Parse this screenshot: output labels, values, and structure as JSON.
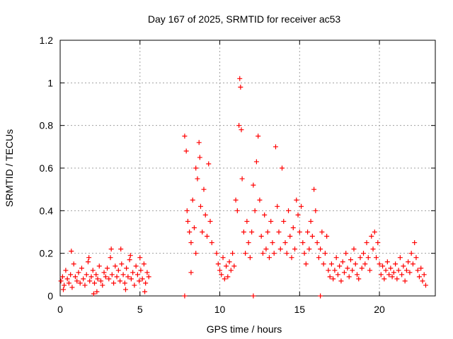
{
  "chart_data": {
    "type": "scatter",
    "title": "Day 167 of 2025, SRMTID for receiver ac53",
    "xlabel": "GPS time / hours",
    "ylabel": "SRMTID / TECUs",
    "xlim": [
      0,
      23.5
    ],
    "ylim": [
      0,
      1.2
    ],
    "xticks": [
      0,
      5,
      10,
      15,
      20
    ],
    "xtick_labels": [
      "0",
      "5",
      "10",
      "15",
      "20"
    ],
    "yticks": [
      0,
      0.2,
      0.4,
      0.6,
      0.8,
      1.0,
      1.2
    ],
    "ytick_labels": [
      "0",
      "0.2",
      "0.4",
      "0.6",
      "0.8",
      "1",
      "1.2"
    ],
    "grid": true,
    "marker": "+",
    "series": [
      {
        "name": "SRMTID",
        "color": "#ff0000",
        "points": [
          [
            0.05,
            0.07
          ],
          [
            0.15,
            0.09
          ],
          [
            0.25,
            0.05
          ],
          [
            0.35,
            0.12
          ],
          [
            0.45,
            0.08
          ],
          [
            0.55,
            0.06
          ],
          [
            0.65,
            0.1
          ],
          [
            0.75,
            0.04
          ],
          [
            0.85,
            0.15
          ],
          [
            0.95,
            0.09
          ],
          [
            1.05,
            0.07
          ],
          [
            1.15,
            0.11
          ],
          [
            1.25,
            0.06
          ],
          [
            1.35,
            0.13
          ],
          [
            1.45,
            0.08
          ],
          [
            1.55,
            0.05
          ],
          [
            1.65,
            0.1
          ],
          [
            1.75,
            0.16
          ],
          [
            1.85,
            0.07
          ],
          [
            1.95,
            0.09
          ],
          [
            2.05,
            0.12
          ],
          [
            2.15,
            0.06
          ],
          [
            2.25,
            0.1
          ],
          [
            2.35,
            0.08
          ],
          [
            2.45,
            0.14
          ],
          [
            2.55,
            0.07
          ],
          [
            2.65,
            0.05
          ],
          [
            2.75,
            0.11
          ],
          [
            2.85,
            0.09
          ],
          [
            2.95,
            0.13
          ],
          [
            3.05,
            0.08
          ],
          [
            3.15,
            0.18
          ],
          [
            3.25,
            0.1
          ],
          [
            3.35,
            0.06
          ],
          [
            3.45,
            0.14
          ],
          [
            3.55,
            0.09
          ],
          [
            3.65,
            0.12
          ],
          [
            3.75,
            0.07
          ],
          [
            3.85,
            0.15
          ],
          [
            3.95,
            0.1
          ],
          [
            4.05,
            0.06
          ],
          [
            4.15,
            0.13
          ],
          [
            4.25,
            0.09
          ],
          [
            4.35,
            0.17
          ],
          [
            4.45,
            0.08
          ],
          [
            4.55,
            0.11
          ],
          [
            4.65,
            0.05
          ],
          [
            4.75,
            0.14
          ],
          [
            4.85,
            0.1
          ],
          [
            4.95,
            0.07
          ],
          [
            5.05,
            0.12
          ],
          [
            5.15,
            0.08
          ],
          [
            5.25,
            0.15
          ],
          [
            5.35,
            0.06
          ],
          [
            5.45,
            0.11
          ],
          [
            5.55,
            0.09
          ],
          [
            0.7,
            0.21
          ],
          [
            1.8,
            0.18
          ],
          [
            3.2,
            0.22
          ],
          [
            3.8,
            0.22
          ],
          [
            4.4,
            0.19
          ],
          [
            5.0,
            0.18
          ],
          [
            0.2,
            0.03
          ],
          [
            2.3,
            0.02
          ],
          [
            4.1,
            0.03
          ],
          [
            7.8,
            0.75
          ],
          [
            7.9,
            0.68
          ],
          [
            7.95,
            0.4
          ],
          [
            8.0,
            0.35
          ],
          [
            8.1,
            0.3
          ],
          [
            8.2,
            0.25
          ],
          [
            8.3,
            0.45
          ],
          [
            8.4,
            0.32
          ],
          [
            8.5,
            0.6
          ],
          [
            8.6,
            0.55
          ],
          [
            8.7,
            0.72
          ],
          [
            8.75,
            0.65
          ],
          [
            8.8,
            0.42
          ],
          [
            8.9,
            0.3
          ],
          [
            9.0,
            0.5
          ],
          [
            9.1,
            0.38
          ],
          [
            9.2,
            0.28
          ],
          [
            9.3,
            0.62
          ],
          [
            9.4,
            0.35
          ],
          [
            9.5,
            0.25
          ],
          [
            8.2,
            0.11
          ],
          [
            8.5,
            0.2
          ],
          [
            9.8,
            0.2
          ],
          [
            9.9,
            0.15
          ],
          [
            10.0,
            0.12
          ],
          [
            10.1,
            0.1
          ],
          [
            10.2,
            0.18
          ],
          [
            10.3,
            0.08
          ],
          [
            10.4,
            0.14
          ],
          [
            10.5,
            0.09
          ],
          [
            10.6,
            0.16
          ],
          [
            10.7,
            0.12
          ],
          [
            10.8,
            0.2
          ],
          [
            10.9,
            0.14
          ],
          [
            11.0,
            0.45
          ],
          [
            11.1,
            0.4
          ],
          [
            11.2,
            0.8
          ],
          [
            11.25,
            1.02
          ],
          [
            11.3,
            0.98
          ],
          [
            11.35,
            0.78
          ],
          [
            11.4,
            0.55
          ],
          [
            11.5,
            0.3
          ],
          [
            11.6,
            0.2
          ],
          [
            11.7,
            0.35
          ],
          [
            11.8,
            0.25
          ],
          [
            11.9,
            0.18
          ],
          [
            12.0,
            0.3
          ],
          [
            12.1,
            0.52
          ],
          [
            12.2,
            0.4
          ],
          [
            12.3,
            0.63
          ],
          [
            12.4,
            0.75
          ],
          [
            12.5,
            0.45
          ],
          [
            12.6,
            0.28
          ],
          [
            12.7,
            0.2
          ],
          [
            12.8,
            0.38
          ],
          [
            12.9,
            0.22
          ],
          [
            13.0,
            0.3
          ],
          [
            13.1,
            0.18
          ],
          [
            13.2,
            0.35
          ],
          [
            13.3,
            0.25
          ],
          [
            13.4,
            0.2
          ],
          [
            13.5,
            0.7
          ],
          [
            13.6,
            0.42
          ],
          [
            13.7,
            0.3
          ],
          [
            13.8,
            0.22
          ],
          [
            13.9,
            0.6
          ],
          [
            14.0,
            0.35
          ],
          [
            14.1,
            0.25
          ],
          [
            14.2,
            0.2
          ],
          [
            14.3,
            0.4
          ],
          [
            14.4,
            0.28
          ],
          [
            14.5,
            0.18
          ],
          [
            14.6,
            0.32
          ],
          [
            14.7,
            0.22
          ],
          [
            14.8,
            0.45
          ],
          [
            14.9,
            0.38
          ],
          [
            15.0,
            0.3
          ],
          [
            15.1,
            0.42
          ],
          [
            15.2,
            0.25
          ],
          [
            15.3,
            0.2
          ],
          [
            15.4,
            0.15
          ],
          [
            15.5,
            0.3
          ],
          [
            15.6,
            0.22
          ],
          [
            15.7,
            0.35
          ],
          [
            15.8,
            0.28
          ],
          [
            15.9,
            0.5
          ],
          [
            16.0,
            0.4
          ],
          [
            16.1,
            0.25
          ],
          [
            16.2,
            0.18
          ],
          [
            16.3,
            0.22
          ],
          [
            16.4,
            0.3
          ],
          [
            16.5,
            0.15
          ],
          [
            16.6,
            0.2
          ],
          [
            16.7,
            0.28
          ],
          [
            16.8,
            0.12
          ],
          [
            16.9,
            0.09
          ],
          [
            17.0,
            0.15
          ],
          [
            17.1,
            0.08
          ],
          [
            17.2,
            0.12
          ],
          [
            17.3,
            0.18
          ],
          [
            17.4,
            0.1
          ],
          [
            17.5,
            0.14
          ],
          [
            17.6,
            0.07
          ],
          [
            17.7,
            0.16
          ],
          [
            17.8,
            0.11
          ],
          [
            17.9,
            0.2
          ],
          [
            18.0,
            0.13
          ],
          [
            18.1,
            0.09
          ],
          [
            18.2,
            0.17
          ],
          [
            18.3,
            0.12
          ],
          [
            18.4,
            0.22
          ],
          [
            18.5,
            0.15
          ],
          [
            18.6,
            0.1
          ],
          [
            18.7,
            0.08
          ],
          [
            18.8,
            0.18
          ],
          [
            18.9,
            0.13
          ],
          [
            19.0,
            0.2
          ],
          [
            19.1,
            0.15
          ],
          [
            19.2,
            0.25
          ],
          [
            19.3,
            0.18
          ],
          [
            19.4,
            0.12
          ],
          [
            19.5,
            0.28
          ],
          [
            19.6,
            0.22
          ],
          [
            19.7,
            0.3
          ],
          [
            19.8,
            0.18
          ],
          [
            19.9,
            0.25
          ],
          [
            20.0,
            0.15
          ],
          [
            20.1,
            0.1
          ],
          [
            20.2,
            0.14
          ],
          [
            20.3,
            0.08
          ],
          [
            20.4,
            0.12
          ],
          [
            20.5,
            0.16
          ],
          [
            20.6,
            0.1
          ],
          [
            20.7,
            0.13
          ],
          [
            20.8,
            0.09
          ],
          [
            20.9,
            0.11
          ],
          [
            21.0,
            0.15
          ],
          [
            21.1,
            0.08
          ],
          [
            21.2,
            0.12
          ],
          [
            21.3,
            0.18
          ],
          [
            21.4,
            0.1
          ],
          [
            21.5,
            0.14
          ],
          [
            21.6,
            0.07
          ],
          [
            21.7,
            0.12
          ],
          [
            21.8,
            0.16
          ],
          [
            21.9,
            0.11
          ],
          [
            22.0,
            0.2
          ],
          [
            22.1,
            0.15
          ],
          [
            22.2,
            0.25
          ],
          [
            22.3,
            0.18
          ],
          [
            22.4,
            0.12
          ],
          [
            22.5,
            0.09
          ],
          [
            22.6,
            0.13
          ],
          [
            22.7,
            0.07
          ],
          [
            22.8,
            0.1
          ],
          [
            22.9,
            0.05
          ],
          [
            7.8,
            0.0
          ],
          [
            12.1,
            0.0
          ],
          [
            5.3,
            0.02
          ],
          [
            2.1,
            0.01
          ],
          [
            16.3,
            0.0
          ]
        ]
      }
    ]
  }
}
